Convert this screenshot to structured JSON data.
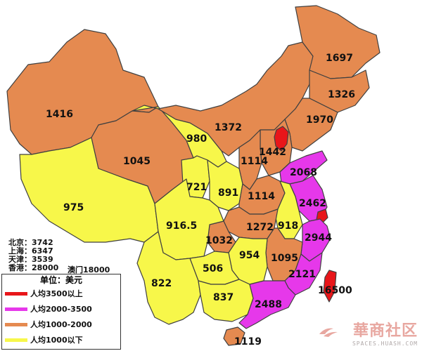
{
  "colors": {
    "cat_gt3500": "#e8161a",
    "cat_2000_3500": "#e638ea",
    "cat_1000_2000": "#e58a50",
    "cat_lt1000": "#f7f74a",
    "border": "#404040",
    "watermark": "#e8a7a0"
  },
  "regions": [
    {
      "id": "heilongjiang",
      "value": "1697",
      "category": "1000-2000"
    },
    {
      "id": "jilin",
      "value": "1326",
      "category": "1000-2000"
    },
    {
      "id": "liaoning",
      "value": "1970",
      "category": "1000-2000"
    },
    {
      "id": "inner-mongolia",
      "value": "1372",
      "category": "1000-2000"
    },
    {
      "id": "xinjiang",
      "value": "1416",
      "category": "1000-2000"
    },
    {
      "id": "qinghai",
      "value": "1045",
      "category": "1000-2000"
    },
    {
      "id": "gansu",
      "value": "980",
      "category": "lt1000"
    },
    {
      "id": "ningxia",
      "value": "721",
      "category": "lt1000"
    },
    {
      "id": "shaanxi",
      "value": "891",
      "category": "lt1000"
    },
    {
      "id": "shanxi",
      "value": "1114",
      "category": "1000-2000"
    },
    {
      "id": "hebei",
      "value": "1442",
      "category": "1000-2000"
    },
    {
      "id": "henan",
      "value": "1114",
      "category": "1000-2000"
    },
    {
      "id": "shandong",
      "value": "2068",
      "category": "2000-3500"
    },
    {
      "id": "jiangsu",
      "value": "2462",
      "category": "2000-3500"
    },
    {
      "id": "anhui",
      "value": "918",
      "category": "lt1000"
    },
    {
      "id": "hubei",
      "value": "1272",
      "category": "1000-2000"
    },
    {
      "id": "zhejiang",
      "value": "2944",
      "category": "2000-3500"
    },
    {
      "id": "tibet",
      "value": "975",
      "category": "lt1000"
    },
    {
      "id": "sichuan",
      "value": "916.5",
      "category": "lt1000"
    },
    {
      "id": "chongqing",
      "value": "1032",
      "category": "1000-2000"
    },
    {
      "id": "hunan",
      "value": "954",
      "category": "lt1000"
    },
    {
      "id": "jiangxi",
      "value": "1095",
      "category": "1000-2000"
    },
    {
      "id": "fujian",
      "value": "2121",
      "category": "2000-3500"
    },
    {
      "id": "guizhou",
      "value": "506",
      "category": "lt1000"
    },
    {
      "id": "yunnan",
      "value": "822",
      "category": "lt1000"
    },
    {
      "id": "guangxi",
      "value": "837",
      "category": "lt1000"
    },
    {
      "id": "guangdong",
      "value": "2488",
      "category": "2000-3500"
    },
    {
      "id": "taiwan",
      "value": "16500",
      "category": "gt3500"
    },
    {
      "id": "hainan",
      "value": "1119",
      "category": "1000-2000"
    },
    {
      "id": "beijing-tianjin",
      "value": "",
      "category": "gt3500"
    },
    {
      "id": "shanghai",
      "value": "",
      "category": "gt3500"
    }
  ],
  "municipalities": [
    {
      "label": "北京：",
      "value": "3742"
    },
    {
      "label": "上海：",
      "value": "6347"
    },
    {
      "label": "天津：",
      "value": "3539"
    },
    {
      "label": "香港：",
      "value": "28000"
    }
  ],
  "macau_label": "澳门18000",
  "legend": {
    "title": "单位：美元",
    "items": [
      {
        "label": "人均3500以上",
        "color_key": "cat_gt3500"
      },
      {
        "label": "人均2000-3500",
        "color_key": "cat_2000_3500"
      },
      {
        "label": "人均1000-2000",
        "color_key": "cat_1000_2000"
      },
      {
        "label": "人均1000以下",
        "color_key": "cat_lt1000"
      }
    ]
  },
  "watermark": {
    "cn": "華商社区",
    "en": "SPACES.HUASH.COM",
    "icon": "logo-icon"
  }
}
